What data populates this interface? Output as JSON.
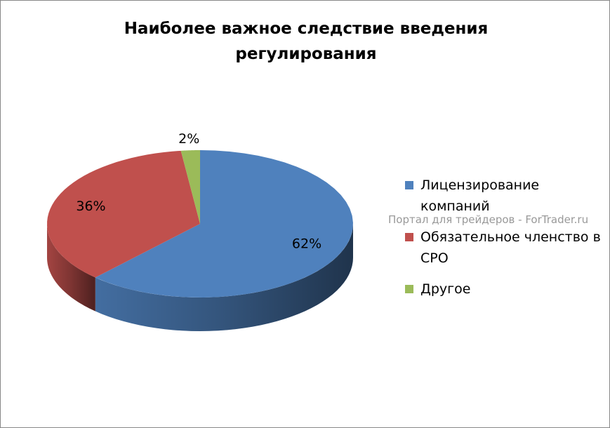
{
  "chart_data": {
    "type": "pie",
    "title": "Наиболее важное следствие введения регулирования",
    "categories": [
      "Лицензирование компаний",
      "Обязательное членство в СРО",
      "Другое"
    ],
    "values": [
      62,
      36,
      2
    ],
    "value_labels": [
      "62%",
      "36%",
      "2%"
    ],
    "colors": [
      "#4f81bd",
      "#c0504d",
      "#9bbb59"
    ],
    "annotations": [
      "Портал для трейдеров - ForTrader.ru"
    ]
  }
}
